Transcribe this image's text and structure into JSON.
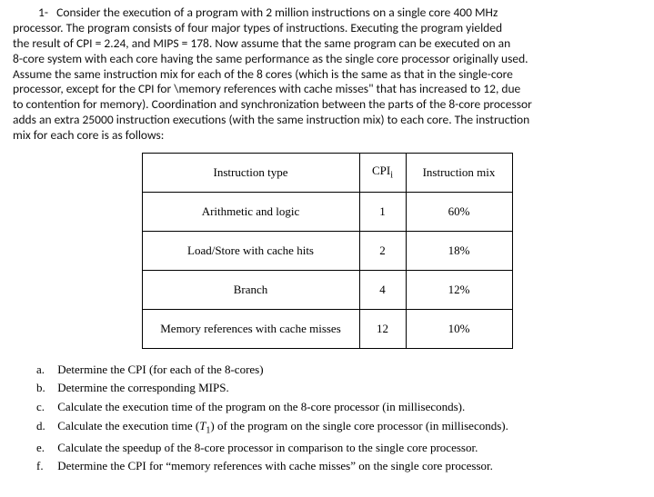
{
  "intro": {
    "q_num": "1-",
    "line1": "Consider the execution of a program with 2 million instructions on a single core 400 MHz",
    "line2": "processor. The program consists of four major types of instructions. Executing the program yielded",
    "line3": "the result of CPI = 2.24, and MIPS = 178. Now assume that the same program can be executed on an",
    "line4": "8-core system with each core having the same performance as the single core processor originally used.",
    "line5": "Assume the same instruction mix for each of the 8 cores (which is the same as that in the single-core",
    "line6": "processor, except for the CPI for \\memory references with cache misses\" that has increased to 12, due",
    "line7": "to contention for memory). Coordination and synchronization between the parts of the 8-core processor",
    "line8": "adds an extra 25000 instruction executions (with the same instruction mix) to each core. The instruction",
    "line9": "mix for each core is as follows:"
  },
  "table": {
    "headers": {
      "type": "Instruction type",
      "cpi_pre": "CPI",
      "cpi_sub": "i",
      "mix": "Instruction mix"
    },
    "rows": [
      {
        "type": "Arithmetic and logic",
        "cpi": "1",
        "mix": "60%"
      },
      {
        "type": "Load/Store with cache hits",
        "cpi": "2",
        "mix": "18%"
      },
      {
        "type": "Branch",
        "cpi": "4",
        "mix": "12%"
      },
      {
        "type": "Memory references with cache misses",
        "cpi": "12",
        "mix": "10%"
      }
    ]
  },
  "items": {
    "a": {
      "lett": "a.",
      "text": "Determine the CPI (for each of the 8-cores)"
    },
    "b": {
      "lett": "b.",
      "text": "Determine the corresponding MIPS."
    },
    "c": {
      "lett": "c.",
      "text": "Calculate the execution time of the program on the 8-core processor (in milliseconds)."
    },
    "d": {
      "lett": "d.",
      "pre": "Calculate the execution time (",
      "t1": "T",
      "sub1": "1",
      "post": ") of the program on the single core processor (in milliseconds)."
    },
    "e": {
      "lett": "e.",
      "text": "Calculate the speedup of the 8-core processor in comparison to the single core processor."
    },
    "f": {
      "lett": "f.",
      "text": "Determine the CPI for “memory references with cache misses” on the single core processor."
    }
  }
}
